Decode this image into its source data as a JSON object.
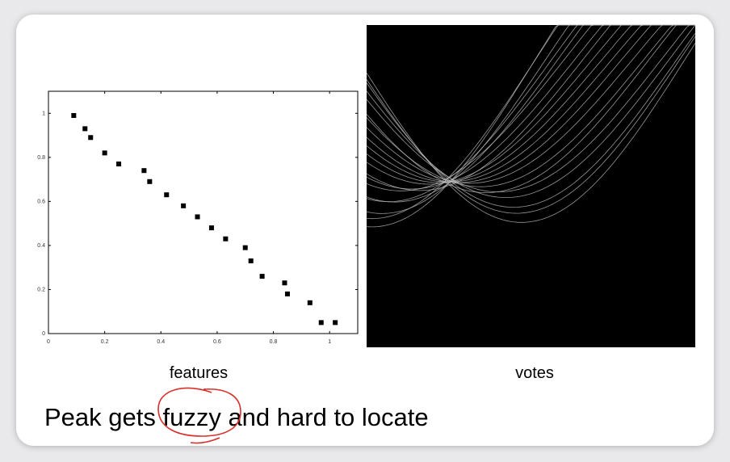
{
  "chart_data": {
    "type": "scatter",
    "x": [
      0.09,
      0.13,
      0.15,
      0.2,
      0.25,
      0.34,
      0.36,
      0.42,
      0.48,
      0.53,
      0.58,
      0.63,
      0.7,
      0.72,
      0.76,
      0.84,
      0.85,
      0.93,
      0.97,
      1.02
    ],
    "y": [
      0.99,
      0.93,
      0.89,
      0.82,
      0.77,
      0.74,
      0.69,
      0.63,
      0.58,
      0.53,
      0.48,
      0.43,
      0.39,
      0.33,
      0.26,
      0.23,
      0.18,
      0.14,
      0.05,
      0.05
    ],
    "xlim": [
      0,
      1.1
    ],
    "ylim": [
      0,
      1.1
    ],
    "xticks": [
      0,
      0.2,
      0.4,
      0.6,
      0.8,
      1
    ],
    "yticks": [
      0,
      0.2,
      0.4,
      0.6,
      0.8,
      1
    ],
    "color": "#000000",
    "caption": "features"
  },
  "votes_image": {
    "caption": "votes"
  },
  "slide": {
    "text": "Peak gets fuzzy and hard to locate"
  }
}
